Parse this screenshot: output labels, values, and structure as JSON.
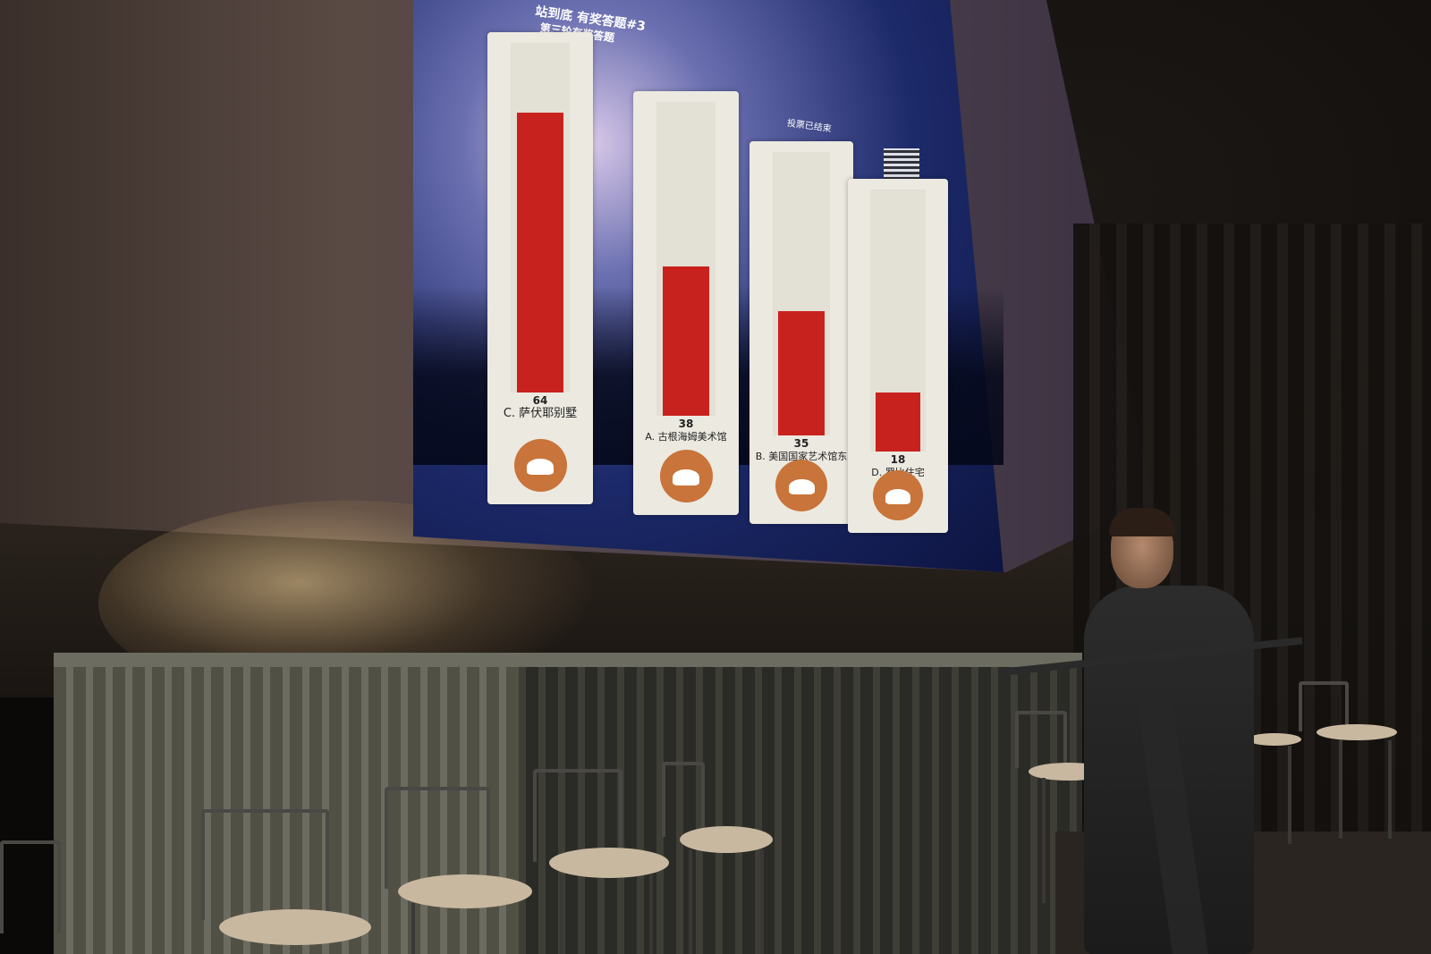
{
  "slide": {
    "title": "站到底 有奖答题#3",
    "subtitle": "第三轮有奖答题",
    "status": "投票已结束"
  },
  "chart_data": {
    "type": "bar",
    "title": "站到底 有奖答题#3",
    "subtitle": "第三轮有奖答题",
    "categories": [
      "C. 萨伏耶别墅",
      "A. 古根海姆美术馆",
      "B. 美国国家艺术馆东馆",
      "D. 罗比住宅"
    ],
    "values": [
      64,
      38,
      35,
      18
    ],
    "ylim": [
      0,
      80
    ],
    "bar_color": "#c8221e",
    "track_color": "#e3e0d6",
    "card_color": "#ece9e0",
    "icon_color": "#c8743a"
  },
  "scene": {
    "screen_tint": "#1d2a6a",
    "curtain_color": "#2a2b26"
  }
}
